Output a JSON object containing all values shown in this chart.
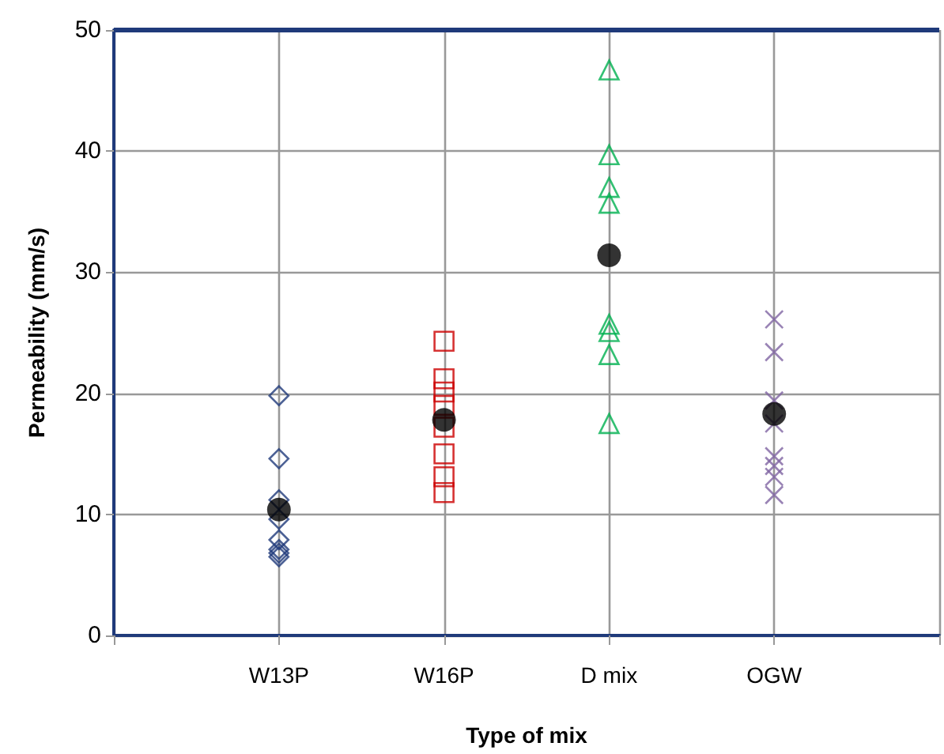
{
  "chart_data": {
    "type": "scatter",
    "xlabel": "Type of mix",
    "ylabel": "Permeability (mm/s)",
    "categories": [
      null,
      "W13P",
      "W16P",
      "D mix",
      "OGW",
      null
    ],
    "ylim": [
      0,
      50
    ],
    "yticks": [
      0,
      10,
      20,
      30,
      40,
      50
    ],
    "grid": true,
    "series": [
      {
        "color": "#1f3a7a",
        "marker": "diamond",
        "x": [
          "W13P",
          "W13P",
          "W13P",
          "W13P",
          "W13P",
          "W13P",
          "W13P",
          "W13P"
        ],
        "values": [
          19.8,
          14.6,
          11.2,
          9.6,
          7.9,
          7.1,
          6.8,
          6.5
        ]
      },
      {
        "color": "#cc0000",
        "marker": "square",
        "x": [
          "W16P",
          "W16P",
          "W16P",
          "W16P",
          "W16P",
          "W16P",
          "W16P",
          "W16P"
        ],
        "values": [
          24.3,
          21.2,
          20.1,
          19.0,
          17.2,
          15.0,
          13.1,
          11.8
        ]
      },
      {
        "color": "#00b050",
        "marker": "triangle",
        "x": [
          "D mix",
          "D mix",
          "D mix",
          "D mix",
          "D mix",
          "D mix",
          "D mix",
          "D mix"
        ],
        "values": [
          46.7,
          39.7,
          37.0,
          35.7,
          25.7,
          25.1,
          23.2,
          17.5
        ]
      },
      {
        "color": "#8064a2",
        "marker": "cross",
        "x": [
          "OGW",
          "OGW",
          "OGW",
          "OGW",
          "OGW",
          "OGW",
          "OGW",
          "OGW"
        ],
        "values": [
          26.1,
          23.4,
          19.4,
          17.5,
          14.8,
          14.0,
          13.1,
          11.6
        ]
      },
      {
        "color": "#000000",
        "marker": "circle",
        "x": [
          "W13P",
          "W16P",
          "D mix",
          "OGW"
        ],
        "values": [
          10.4,
          17.8,
          31.4,
          18.3
        ]
      }
    ]
  }
}
